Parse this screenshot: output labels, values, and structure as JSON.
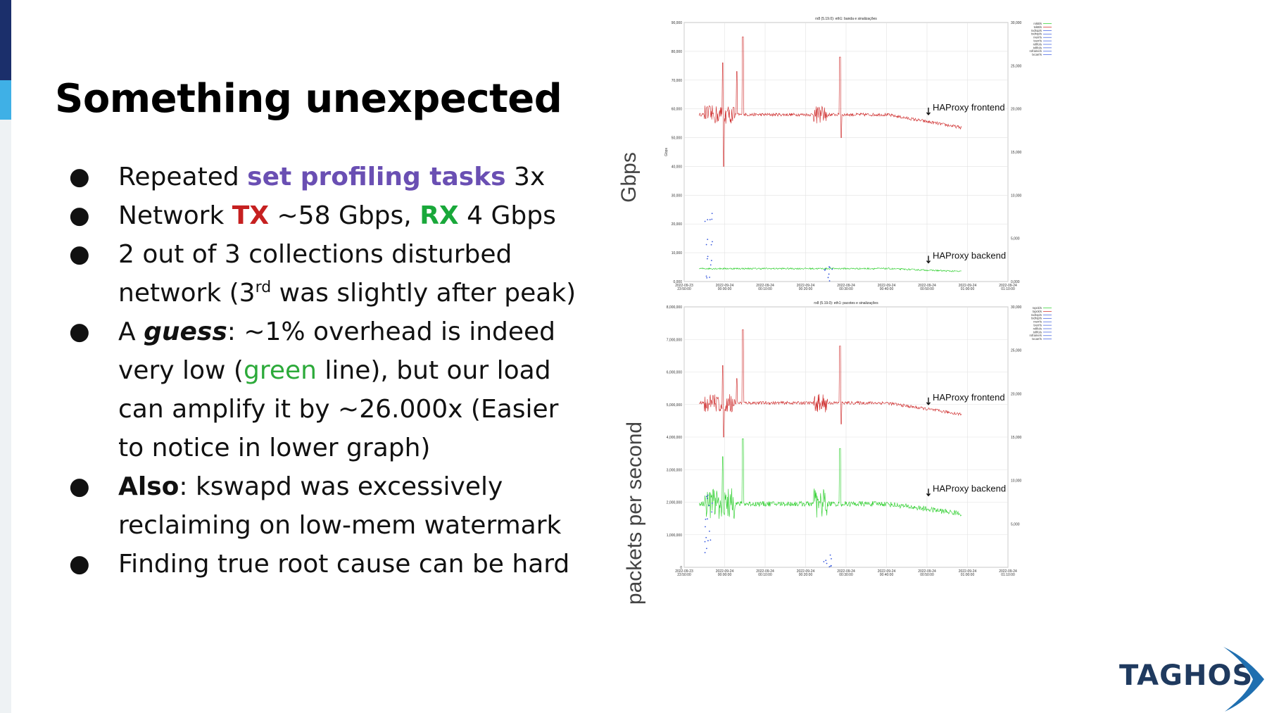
{
  "slide": {
    "title": "Something unexpected",
    "bullets": [
      {
        "parts": [
          "Repeated ",
          "set profiling tasks",
          " 3x"
        ]
      },
      {
        "parts": [
          "Network ",
          "TX",
          " ~58 Gbps, ",
          "RX",
          " 4 Gbps"
        ]
      },
      {
        "parts": [
          "2 out of 3 collections disturbed network (3",
          "rd",
          " was slightly after peak)"
        ]
      },
      {
        "parts": [
          "A ",
          "guess",
          ": ~1% overhead is indeed very low (",
          "green",
          " line), but our load can amplify it by ~26.000x (Easier to notice in lower graph)"
        ]
      },
      {
        "parts": [
          "Also",
          ": kswapd was excessively reclaiming on low-mem watermark"
        ]
      },
      {
        "parts": [
          "Finding true root cause can be hard"
        ]
      }
    ],
    "logo_text": "TAGHOS"
  },
  "colors": {
    "purple": "#6a4fb3",
    "tx": "#c62020",
    "rx": "#19a83a",
    "frontend_line": "#cc2222",
    "backend_line": "#22cc22",
    "markers": "#3355dd",
    "logo_dark": "#1f3a5f",
    "logo_swoosh": "#1f6fb0"
  },
  "chart_data": [
    {
      "type": "line",
      "title": "rx8          (5.19.0): eth1: banda e sinalizações",
      "ylabel": "Gbps",
      "inner_ylabel": "Gbps",
      "ylim": [
        0,
        90000
      ],
      "yticks": [
        "0,000",
        "10,000",
        "20,000",
        "30,000",
        "40,000",
        "50,000",
        "60,000",
        "70,000",
        "80,000",
        "90,000"
      ],
      "y2ticks": [
        "0,000",
        "5,000",
        "10,000",
        "15,000",
        "20,000",
        "25,000",
        "30,000"
      ],
      "xticks": [
        [
          "2022-09-23",
          "23:50:00"
        ],
        [
          "2022-09-24",
          "00:00:00"
        ],
        [
          "2022-09-24",
          "00:10:00"
        ],
        [
          "2022-09-24",
          "00:20:00"
        ],
        [
          "2022-09-24",
          "00:30:00"
        ],
        [
          "2022-09-24",
          "00:40:00"
        ],
        [
          "2022-09-24",
          "00:50:00"
        ],
        [
          "2022-09-24",
          "01:00:00"
        ],
        [
          "2022-09-24",
          "01:10:00"
        ]
      ],
      "legend": [
        "rxkB/s",
        "txkB/s",
        "rxdrop/s",
        "txdrop/s",
        "rxerr/s",
        "txerr/s",
        "rxfifo/s",
        "txfifo/s",
        "rxframe/s",
        "txcarr/s"
      ],
      "annotations": [
        {
          "text": "HAProxy frontend",
          "at": {
            "x": "00:50:00",
            "y": 58000
          }
        },
        {
          "text": "HAProxy backend",
          "at": {
            "x": "00:50:00",
            "y": 6500
          }
        }
      ],
      "series": [
        {
          "name": "txkB/s",
          "baseline": 58000,
          "end": 53500,
          "spikes": [
            {
              "x": "23:59:30",
              "y": 76000,
              "low": 40000
            },
            {
              "x": "00:03:00",
              "y": 73000
            },
            {
              "x": "00:04:30",
              "y": 85000
            },
            {
              "x": "00:28:30",
              "y": 78000,
              "low": 50000
            }
          ]
        },
        {
          "name": "rxkB/s",
          "baseline": 4500,
          "end": 3500
        }
      ]
    },
    {
      "type": "line",
      "title": "rx8          (5.19.0): eth1: pacotes e sinalizações",
      "ylabel": "packets per second",
      "inner_ylabel": "",
      "ylim": [
        0,
        8000000
      ],
      "yticks": [
        "0",
        "1,000,000",
        "2,000,000",
        "3,000,000",
        "4,000,000",
        "5,000,000",
        "6,000,000",
        "7,000,000",
        "8,000,000"
      ],
      "y2ticks": [
        "5,000",
        "10,000",
        "15,000",
        "20,000",
        "25,000",
        "30,000"
      ],
      "xticks": [
        [
          "2022-09-23",
          "23:50:00"
        ],
        [
          "2022-09-24",
          "00:00:00"
        ],
        [
          "2022-09-24",
          "00:10:00"
        ],
        [
          "2022-09-24",
          "00:20:00"
        ],
        [
          "2022-09-24",
          "00:30:00"
        ],
        [
          "2022-09-24",
          "00:40:00"
        ],
        [
          "2022-09-24",
          "00:50:00"
        ],
        [
          "2022-09-24",
          "01:00:00"
        ],
        [
          "2022-09-24",
          "01:10:00"
        ]
      ],
      "legend": [
        "rxpck/s",
        "txpck/s",
        "rxdrop/s",
        "txdrop/s",
        "rxerr/s",
        "txerr/s",
        "rxfifo/s",
        "txfifo/s",
        "rxframe/s",
        "txcarr/s"
      ],
      "annotations": [
        {
          "text": "HAProxy frontend",
          "at": {
            "x": "00:50:00",
            "y": 5000000
          }
        },
        {
          "text": "HAProxy backend",
          "at": {
            "x": "00:50:00",
            "y": 2200000
          }
        }
      ],
      "series": [
        {
          "name": "txpck/s",
          "baseline": 5050000,
          "end": 4700000,
          "spikes": [
            {
              "x": "23:59:30",
              "y": 6200000,
              "low": 4000000
            },
            {
              "x": "00:03:00",
              "y": 5800000
            },
            {
              "x": "00:04:30",
              "y": 7300000
            },
            {
              "x": "00:28:30",
              "y": 6800000,
              "low": 4400000
            }
          ]
        },
        {
          "name": "rxpck/s",
          "baseline": 1950000,
          "end": 1650000,
          "spikes": [
            {
              "x": "23:59:30",
              "y": 3400000
            },
            {
              "x": "00:04:30",
              "y": 3950000
            },
            {
              "x": "00:28:30",
              "y": 3650000
            }
          ]
        }
      ]
    }
  ]
}
